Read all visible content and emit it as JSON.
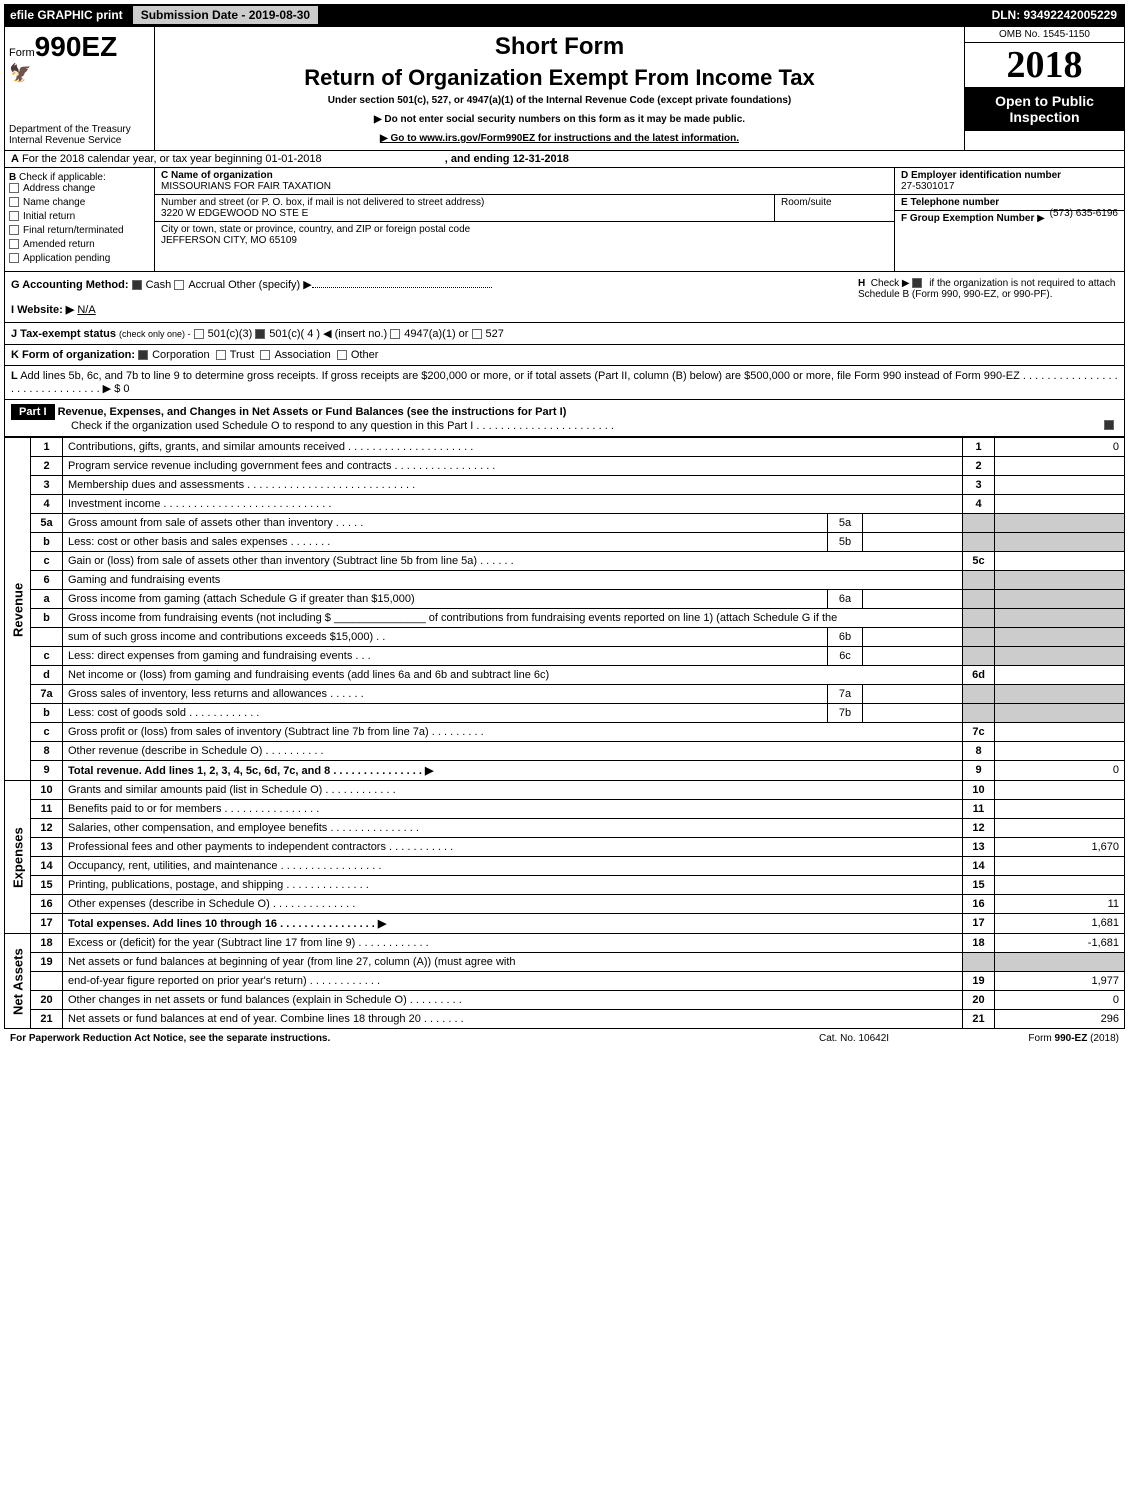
{
  "topbar": {
    "efile": "efile GRAPHIC print",
    "submission": "Submission Date - 2019-08-30",
    "dln": "DLN: 93492242005229"
  },
  "header": {
    "form_prefix": "Form",
    "form_number": "990EZ",
    "short_form": "Short Form",
    "title": "Return of Organization Exempt From Income Tax",
    "subtitle": "Under section 501(c), 527, or 4947(a)(1) of the Internal Revenue Code (except private foundations)",
    "note1": "▶ Do not enter social security numbers on this form as it may be made public.",
    "note2": "▶ Go to www.irs.gov/Form990EZ for instructions and the latest information.",
    "dept": "Department of the Treasury",
    "irs": "Internal Revenue Service",
    "omb": "OMB No. 1545-1150",
    "year": "2018",
    "open": "Open to Public",
    "inspection": "Inspection"
  },
  "line_a": {
    "label": "A",
    "text": "For the 2018 calendar year, or tax year beginning 01-01-2018",
    "ending": ", and ending 12-31-2018"
  },
  "section_b": {
    "label": "B",
    "check_label": "Check if applicable:",
    "items": [
      "Address change",
      "Name change",
      "Initial return",
      "Final return/terminated",
      "Amended return",
      "Application pending"
    ]
  },
  "section_c": {
    "c_label": "C Name of organization",
    "org_name": "MISSOURIANS FOR FAIR TAXATION",
    "addr_label": "Number and street (or P. O. box, if mail is not delivered to street address)",
    "address": "3220 W EDGEWOOD NO STE E",
    "room_label": "Room/suite",
    "city_label": "City or town, state or province, country, and ZIP or foreign postal code",
    "city": "JEFFERSON CITY, MO  65109"
  },
  "section_d": {
    "d_label": "D Employer identification number",
    "ein": "27-5301017",
    "e_label": "E Telephone number",
    "phone": "(573) 635-6196",
    "f_label": "F Group Exemption Number",
    "f_arrow": "▶"
  },
  "section_g": {
    "g_label": "G Accounting Method:",
    "cash": "Cash",
    "accrual": "Accrual",
    "other": "Other (specify) ▶",
    "h_label": "H",
    "h_check": "Check ▶",
    "h_text": "if the organization is not required to attach Schedule B (Form 990, 990-EZ, or 990-PF).",
    "i_label": "I Website: ▶",
    "website": "N/A"
  },
  "line_j": {
    "label": "J Tax-exempt status",
    "note": "(check only one) -",
    "opt1": "501(c)(3)",
    "opt2": "501(c)( 4 ) ◀ (insert no.)",
    "opt3": "4947(a)(1) or",
    "opt4": "527"
  },
  "line_k": {
    "label": "K Form of organization:",
    "opts": [
      "Corporation",
      "Trust",
      "Association",
      "Other"
    ]
  },
  "line_l": {
    "label": "L",
    "text": "Add lines 5b, 6c, and 7b to line 9 to determine gross receipts. If gross receipts are $200,000 or more, or if total assets (Part II, column (B) below) are $500,000 or more, file Form 990 instead of Form 990-EZ . . . . . . . . . . . . . . . . . . . . . . . . . . . . . . . ▶ $ 0"
  },
  "part1": {
    "header": "Part I",
    "title": "Revenue, Expenses, and Changes in Net Assets or Fund Balances (see the instructions for Part I)",
    "check_text": "Check if the organization used Schedule O to respond to any question in this Part I . . . . . . . . . . . . . . . . . . . . . . ."
  },
  "side_labels": {
    "revenue": "Revenue",
    "expenses": "Expenses",
    "net_assets": "Net Assets"
  },
  "rows": [
    {
      "n": "1",
      "desc": "Contributions, gifts, grants, and similar amounts received . . . . . . . . . . . . . . . . . . . . .",
      "rn": "1",
      "amt": "0"
    },
    {
      "n": "2",
      "desc": "Program service revenue including government fees and contracts . . . . . . . . . . . . . . . . .",
      "rn": "2",
      "amt": ""
    },
    {
      "n": "3",
      "desc": "Membership dues and assessments . . . . . . . . . . . . . . . . . . . . . . . . . . . .",
      "rn": "3",
      "amt": ""
    },
    {
      "n": "4",
      "desc": "Investment income . . . . . . . . . . . . . . . . . . . . . . . . . . . .",
      "rn": "4",
      "amt": ""
    },
    {
      "n": "5a",
      "desc": "Gross amount from sale of assets other than inventory . . . . .",
      "sub_n": "5a",
      "sub_v": ""
    },
    {
      "n": "b",
      "desc": "Less: cost or other basis and sales expenses . . . . . . .",
      "sub_n": "5b",
      "sub_v": ""
    },
    {
      "n": "c",
      "desc": "Gain or (loss) from sale of assets other than inventory (Subtract line 5b from line 5a)       . . . . . .",
      "rn": "5c",
      "amt": ""
    },
    {
      "n": "6",
      "desc": "Gaming and fundraising events"
    },
    {
      "n": "a",
      "desc": "Gross income from gaming (attach Schedule G if greater than $15,000)",
      "sub_n": "6a",
      "sub_v": ""
    },
    {
      "n": "b",
      "desc": "Gross income from fundraising events (not including $ _______________ of contributions from fundraising events reported on line 1) (attach Schedule G if the"
    },
    {
      "n": "",
      "desc": "sum of such gross income and contributions exceeds $15,000)      . .",
      "sub_n": "6b",
      "sub_v": ""
    },
    {
      "n": "c",
      "desc": "Less: direct expenses from gaming and fundraising events      . . .",
      "sub_n": "6c",
      "sub_v": ""
    },
    {
      "n": "d",
      "desc": "Net income or (loss) from gaming and fundraising events (add lines 6a and 6b and subtract line 6c)",
      "rn": "6d",
      "amt": ""
    },
    {
      "n": "7a",
      "desc": "Gross sales of inventory, less returns and allowances      . . . . . .",
      "sub_n": "7a",
      "sub_v": ""
    },
    {
      "n": "b",
      "desc": "Less: cost of goods sold                    . . . . . . . . . . . .",
      "sub_n": "7b",
      "sub_v": ""
    },
    {
      "n": "c",
      "desc": "Gross profit or (loss) from sales of inventory (Subtract line 7b from line 7a)      . . . . . . . . .",
      "rn": "7c",
      "amt": ""
    },
    {
      "n": "8",
      "desc": "Other revenue (describe in Schedule O)                    . . . . . . . . . .",
      "rn": "8",
      "amt": ""
    },
    {
      "n": "9",
      "desc": "Total revenue. Add lines 1, 2, 3, 4, 5c, 6d, 7c, and 8      . . . . . . . . . . . . . . . ▶",
      "bold": true,
      "rn": "9",
      "amt": "0"
    },
    {
      "n": "10",
      "desc": "Grants and similar amounts paid (list in Schedule O)          . . . . . . . . . . . .",
      "rn": "10",
      "amt": ""
    },
    {
      "n": "11",
      "desc": "Benefits paid to or for members          . . . . . . . . . . . . . . . .",
      "rn": "11",
      "amt": ""
    },
    {
      "n": "12",
      "desc": "Salaries, other compensation, and employee benefits      . . . . . . . . . . . . . . .",
      "rn": "12",
      "amt": ""
    },
    {
      "n": "13",
      "desc": "Professional fees and other payments to independent contractors      . . . . . . . . . . .",
      "rn": "13",
      "amt": "1,670"
    },
    {
      "n": "14",
      "desc": "Occupancy, rent, utilities, and maintenance      . . . . . . . . . . . . . . . . .",
      "rn": "14",
      "amt": ""
    },
    {
      "n": "15",
      "desc": "Printing, publications, postage, and shipping          . . . . . . . . . . . . . .",
      "rn": "15",
      "amt": ""
    },
    {
      "n": "16",
      "desc": "Other expenses (describe in Schedule O)          . . . . . . . . . . . . . .",
      "rn": "16",
      "amt": "11"
    },
    {
      "n": "17",
      "desc": "Total expenses. Add lines 10 through 16          . . . . . . . . . . . . . . . . ▶",
      "bold": true,
      "rn": "17",
      "amt": "1,681"
    },
    {
      "n": "18",
      "desc": "Excess or (deficit) for the year (Subtract line 17 from line 9)      . . . . . . . . . . . .",
      "rn": "18",
      "amt": "-1,681"
    },
    {
      "n": "19",
      "desc": "Net assets or fund balances at beginning of year (from line 27, column (A)) (must agree with"
    },
    {
      "n": "",
      "desc": "end-of-year figure reported on prior year's return)          . . . . . . . . . . . .",
      "rn": "19",
      "amt": "1,977"
    },
    {
      "n": "20",
      "desc": "Other changes in net assets or fund balances (explain in Schedule O)      . . . . . . . . .",
      "rn": "20",
      "amt": "0"
    },
    {
      "n": "21",
      "desc": "Net assets or fund balances at end of year. Combine lines 18 through 20      . . . . . . .",
      "rn": "21",
      "amt": "296"
    }
  ],
  "footer": {
    "left": "For Paperwork Reduction Act Notice, see the separate instructions.",
    "mid": "Cat. No. 10642I",
    "right": "Form 990-EZ (2018)"
  },
  "colors": {
    "black": "#000000",
    "white": "#ffffff",
    "gray": "#cccccc"
  }
}
